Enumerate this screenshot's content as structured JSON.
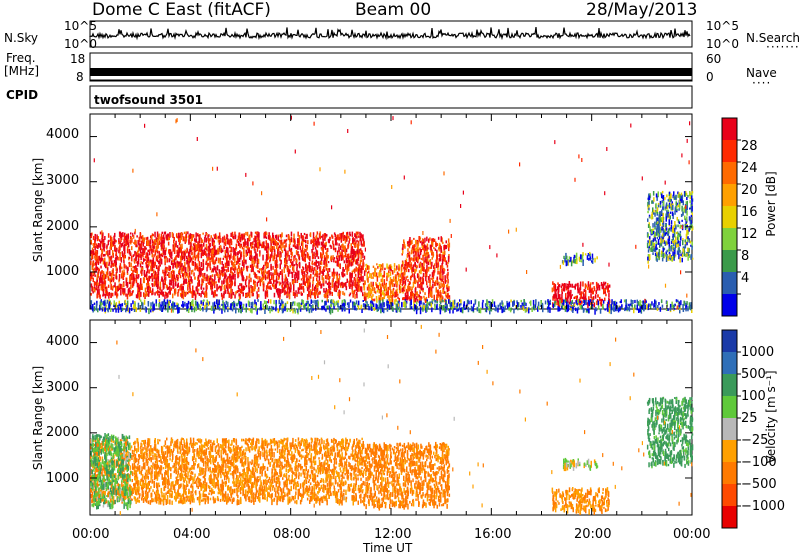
{
  "header": {
    "station": "Dome C East (fitACF)",
    "beam": "Beam 00",
    "date": "28/May/2013"
  },
  "top_panels": {
    "nsky_label": "N.Sky",
    "nsky_ticks": [
      "10^5",
      "10^0"
    ],
    "nsearch_label": "N.Search",
    "nsearch_ticks": [
      "10^5",
      "10^0"
    ],
    "freq_label": "Freq.",
    "freq_unit": "[MHz]",
    "freq_ticks": [
      "18",
      "8"
    ],
    "nave_label": "Nave",
    "nave_ticks": [
      "60",
      "0"
    ],
    "cpid_label": "CPID",
    "cpid_value": "twofsound 3501"
  },
  "x_axis": {
    "label": "Time UT",
    "ticks": [
      "00:00",
      "04:00",
      "08:00",
      "12:00",
      "16:00",
      "20:00",
      "00:00"
    ]
  },
  "power_panel": {
    "ylabel": "Slant Range [km]",
    "yticks": [
      "4000",
      "3000",
      "2000",
      "1000"
    ],
    "colorbar_label": "Power [dB]",
    "colorbar_ticks": [
      "28",
      "24",
      "20",
      "16",
      "12",
      "8",
      "4"
    ],
    "colors": [
      "#e8001a",
      "#ff2a00",
      "#ff6a00",
      "#ffa000",
      "#e8d000",
      "#7fd23c",
      "#3a9a4a",
      "#2a5eb0",
      "#0000e8"
    ]
  },
  "velocity_panel": {
    "ylabel": "Slant Range [km]",
    "yticks": [
      "4000",
      "3000",
      "2000",
      "1000"
    ],
    "colorbar_label": "Velocity [m s⁻¹]",
    "colorbar_ticks": [
      "1000",
      "500",
      "100",
      "25",
      "−25",
      "−100",
      "−500",
      "−1000"
    ],
    "colors": [
      "#1a3aa8",
      "#2f6fb8",
      "#3a9a5a",
      "#5fc93a",
      "#b8b8b8",
      "#ffa000",
      "#ff7a00",
      "#ff4a00",
      "#e80000"
    ]
  },
  "chart_data": [
    {
      "type": "heatmap",
      "title": "Power",
      "x_range": [
        "00:00",
        "24:00"
      ],
      "y_range_km": [
        180,
        4500
      ],
      "value_range_db": [
        0,
        32
      ],
      "regions": [
        {
          "t_start": 0.0,
          "t_end": 10.9,
          "range_km": [
            500,
            1900
          ],
          "value": 28
        },
        {
          "t_start": 10.9,
          "t_end": 12.4,
          "range_km": [
            400,
            1200
          ],
          "value": 22
        },
        {
          "t_start": 12.4,
          "t_end": 14.3,
          "range_km": [
            400,
            1800
          ],
          "value": 26
        },
        {
          "t_start": 18.4,
          "t_end": 20.7,
          "range_km": [
            300,
            800
          ],
          "value": 30
        },
        {
          "t_start": 18.8,
          "t_end": 20.2,
          "range_km": [
            1250,
            1450
          ],
          "value": 8
        },
        {
          "t_start": 0.0,
          "t_end": 24.0,
          "range_km": [
            180,
            400
          ],
          "value": 6
        },
        {
          "t_start": 22.2,
          "t_end": 24.0,
          "range_km": [
            1300,
            2800
          ],
          "value": 8
        }
      ]
    },
    {
      "type": "heatmap",
      "title": "Velocity",
      "x_range": [
        "00:00",
        "24:00"
      ],
      "y_range_km": [
        180,
        4500
      ],
      "value_range_ms": [
        -1000,
        1000
      ],
      "regions": [
        {
          "t_start": 0.0,
          "t_end": 10.9,
          "range_km": [
            500,
            1900
          ],
          "value": -120
        },
        {
          "t_start": 0.0,
          "t_end": 1.6,
          "range_km": [
            400,
            2000
          ],
          "value": 90
        },
        {
          "t_start": 10.9,
          "t_end": 14.3,
          "range_km": [
            400,
            1800
          ],
          "value": -150
        },
        {
          "t_start": 18.4,
          "t_end": 20.7,
          "range_km": [
            300,
            800
          ],
          "value": -110
        },
        {
          "t_start": 18.8,
          "t_end": 20.2,
          "range_km": [
            1250,
            1450
          ],
          "value": 10
        },
        {
          "t_start": 22.2,
          "t_end": 24.0,
          "range_km": [
            1300,
            2800
          ],
          "value": 150
        }
      ]
    }
  ]
}
